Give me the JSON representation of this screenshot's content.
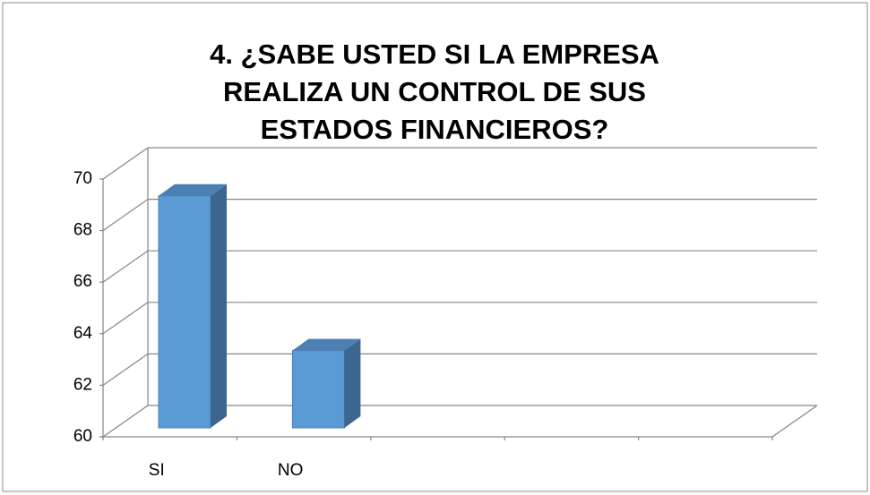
{
  "chart_data": {
    "type": "bar3d",
    "title": "4. ¿SABE USTED SI LA EMPRESA REALIZA UN CONTROL DE SUS ESTADOS FINANCIEROS?",
    "categories": [
      "SI",
      "NO",
      null,
      null,
      null
    ],
    "values": [
      69,
      63,
      null,
      null,
      null
    ],
    "color": "#5b9bd5",
    "ylim": [
      60,
      70
    ],
    "yticks": [
      60,
      62,
      64,
      66,
      68,
      70
    ],
    "grid": true
  }
}
